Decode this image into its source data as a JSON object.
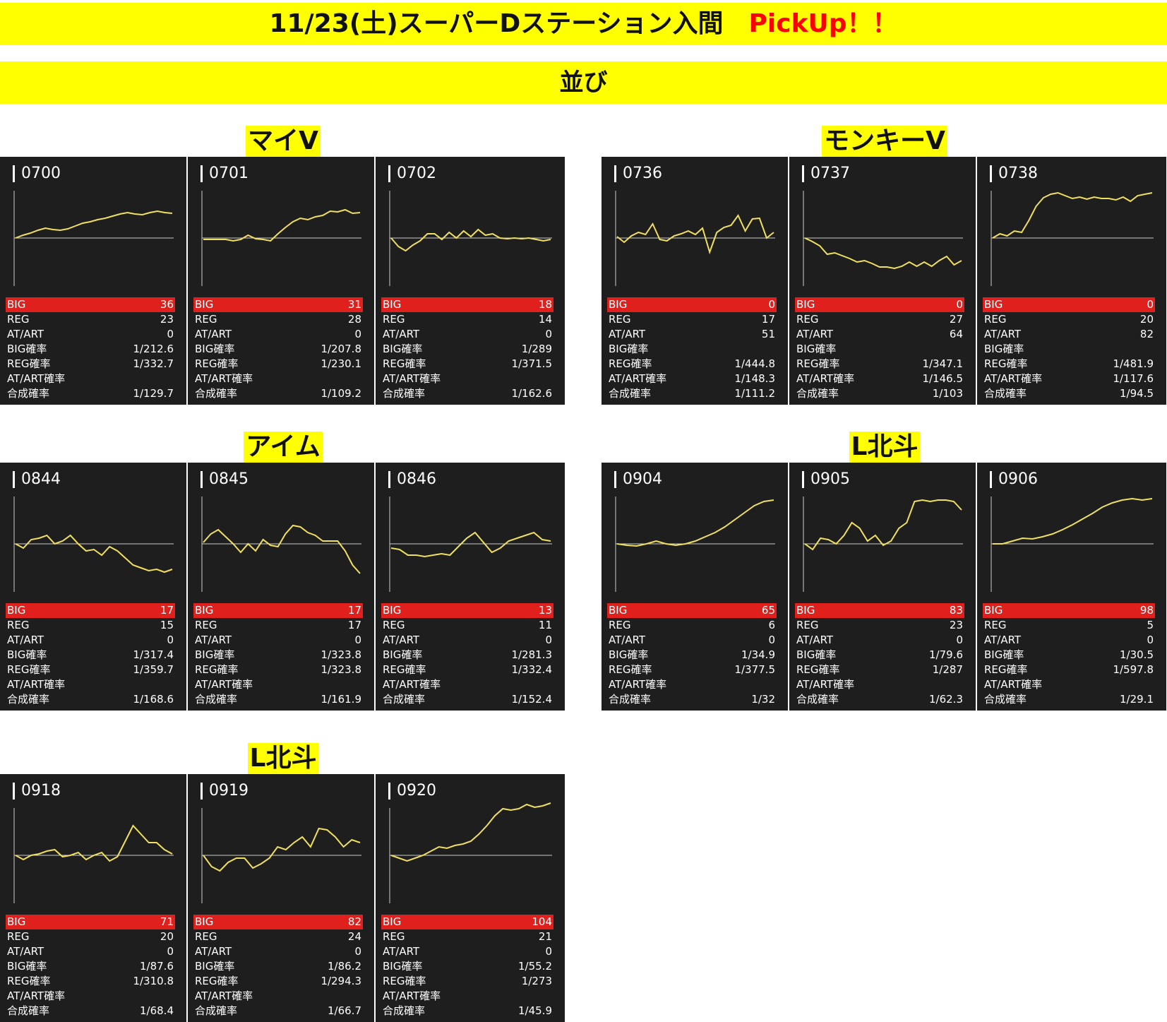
{
  "header": {
    "title": "11/23(土)スーパーDステーション入間",
    "pickup": "PickUp！！"
  },
  "subheader": {
    "label": "並び"
  },
  "stat_labels": {
    "big": "BIG",
    "reg": "REG",
    "at": "AT/ART",
    "big_rate": "BIG確率",
    "reg_rate": "REG確率",
    "at_rate": "AT/ART確率",
    "total_rate": "合成確率"
  },
  "colors": {
    "banner": "#ffff00",
    "pickup": "#ff0000",
    "card_bg": "#1e1e1e",
    "big_row": "#e0201c",
    "line": "#f0e060",
    "axis": "#cccccc"
  },
  "chart_data": [
    {
      "type": "line",
      "group": "マイV",
      "machines": [
        {
          "id": "0700",
          "series": [
            0,
            4,
            7,
            11,
            14,
            12,
            11,
            13,
            17,
            21,
            23,
            26,
            28,
            31,
            34,
            36,
            34,
            33,
            36,
            38,
            36,
            35
          ],
          "big": "36",
          "reg": "23",
          "at": "0",
          "big_rate": "1/212.6",
          "reg_rate": "1/332.7",
          "at_rate": "",
          "total_rate": "1/129.7"
        },
        {
          "id": "0701",
          "series": [
            -2,
            -2,
            -2,
            -2,
            -4,
            -2,
            4,
            -1,
            -2,
            -4,
            6,
            15,
            23,
            28,
            26,
            30,
            32,
            38,
            37,
            40,
            35,
            36
          ],
          "big": "31",
          "reg": "28",
          "at": "0",
          "big_rate": "1/207.8",
          "reg_rate": "1/230.1",
          "at_rate": "",
          "total_rate": "1/109.2"
        },
        {
          "id": "0702",
          "series": [
            0,
            -12,
            -18,
            -10,
            -4,
            6,
            6,
            -2,
            8,
            0,
            10,
            2,
            12,
            4,
            6,
            0,
            -1,
            0,
            -1,
            0,
            -2,
            -4,
            -2
          ],
          "big": "18",
          "reg": "14",
          "at": "0",
          "big_rate": "1/289",
          "reg_rate": "1/371.5",
          "at_rate": "",
          "total_rate": "1/162.6"
        }
      ]
    },
    {
      "type": "line",
      "group": "モンキーV",
      "machines": [
        {
          "id": "0736",
          "series": [
            2,
            -6,
            3,
            8,
            5,
            20,
            -2,
            -4,
            3,
            6,
            10,
            5,
            14,
            -20,
            8,
            15,
            18,
            32,
            10,
            27,
            28,
            0,
            8
          ],
          "big": "0",
          "reg": "17",
          "at": "51",
          "big_rate": "",
          "reg_rate": "1/444.8",
          "at_rate": "1/148.3",
          "total_rate": "1/111.2"
        },
        {
          "id": "0737",
          "series": [
            0,
            -5,
            -11,
            -23,
            -21,
            -25,
            -29,
            -34,
            -32,
            -36,
            -41,
            -41,
            -43,
            -40,
            -34,
            -40,
            -34,
            -40,
            -32,
            -26,
            -38,
            -32
          ],
          "big": "0",
          "reg": "27",
          "at": "64",
          "big_rate": "",
          "reg_rate": "1/347.1",
          "at_rate": "1/146.5",
          "total_rate": "1/103"
        },
        {
          "id": "0738",
          "series": [
            0,
            6,
            3,
            10,
            8,
            25,
            45,
            57,
            62,
            64,
            60,
            56,
            58,
            55,
            58,
            56,
            56,
            54,
            58,
            52,
            60,
            62,
            64
          ],
          "big": "0",
          "reg": "20",
          "at": "82",
          "big_rate": "",
          "reg_rate": "1/481.9",
          "at_rate": "1/117.6",
          "total_rate": "1/94.5"
        }
      ]
    },
    {
      "type": "line",
      "group": "アイム",
      "machines": [
        {
          "id": "0844",
          "series": [
            0,
            -6,
            6,
            8,
            12,
            0,
            4,
            12,
            0,
            -10,
            -8,
            -16,
            -4,
            -10,
            -20,
            -30,
            -34,
            -38,
            -36,
            -40,
            -36
          ],
          "big": "17",
          "reg": "15",
          "at": "0",
          "big_rate": "1/317.4",
          "reg_rate": "1/359.7",
          "at_rate": "",
          "total_rate": "1/168.6"
        },
        {
          "id": "0845",
          "series": [
            2,
            14,
            20,
            10,
            0,
            -12,
            0,
            -10,
            6,
            -2,
            -4,
            14,
            26,
            24,
            16,
            12,
            4,
            4,
            4,
            -10,
            -30,
            -42
          ],
          "big": "17",
          "reg": "17",
          "at": "0",
          "big_rate": "1/323.8",
          "reg_rate": "1/323.8",
          "at_rate": "",
          "total_rate": "1/161.9"
        },
        {
          "id": "0846",
          "series": [
            -6,
            -8,
            -16,
            -16,
            -18,
            -16,
            -14,
            -16,
            -4,
            8,
            16,
            2,
            -12,
            -6,
            4,
            8,
            12,
            16,
            6,
            4
          ],
          "big": "13",
          "reg": "11",
          "at": "0",
          "big_rate": "1/281.3",
          "reg_rate": "1/332.4",
          "at_rate": "",
          "total_rate": "1/152.4"
        }
      ]
    },
    {
      "type": "line",
      "group": "L北斗",
      "machines": [
        {
          "id": "0904",
          "series": [
            0,
            -2,
            -3,
            0,
            4,
            0,
            -2,
            0,
            4,
            10,
            16,
            24,
            34,
            44,
            54,
            60,
            62
          ],
          "big": "65",
          "reg": "6",
          "at": "0",
          "big_rate": "1/34.9",
          "reg_rate": "1/377.5",
          "at_rate": "",
          "total_rate": "1/32"
        },
        {
          "id": "0905",
          "series": [
            0,
            -8,
            8,
            6,
            0,
            12,
            30,
            22,
            4,
            12,
            -2,
            4,
            22,
            30,
            60,
            62,
            60,
            62,
            62,
            60,
            48
          ],
          "big": "83",
          "reg": "23",
          "at": "0",
          "big_rate": "1/79.6",
          "reg_rate": "1/287",
          "at_rate": "",
          "total_rate": "1/62.3"
        },
        {
          "id": "0906",
          "series": [
            0,
            0,
            4,
            8,
            7,
            10,
            14,
            20,
            27,
            35,
            43,
            52,
            58,
            62,
            64,
            62,
            64
          ],
          "big": "98",
          "reg": "5",
          "at": "0",
          "big_rate": "1/30.5",
          "reg_rate": "1/597.8",
          "at_rate": "",
          "total_rate": "1/29.1"
        }
      ]
    },
    {
      "type": "line",
      "group": "L北斗",
      "machines": [
        {
          "id": "0918",
          "series": [
            0,
            -6,
            0,
            2,
            6,
            8,
            -2,
            0,
            4,
            -6,
            0,
            4,
            -8,
            -2,
            20,
            42,
            30,
            18,
            18,
            8,
            2
          ],
          "big": "71",
          "reg": "20",
          "at": "0",
          "big_rate": "1/87.6",
          "reg_rate": "1/310.8",
          "at_rate": "",
          "total_rate": "1/68.4"
        },
        {
          "id": "0919",
          "series": [
            0,
            -16,
            -22,
            -10,
            -4,
            -4,
            -18,
            -12,
            -4,
            12,
            8,
            18,
            26,
            12,
            38,
            36,
            26,
            12,
            22,
            18
          ],
          "big": "82",
          "reg": "24",
          "at": "0",
          "big_rate": "1/86.2",
          "reg_rate": "1/294.3",
          "at_rate": "",
          "total_rate": "1/66.7"
        },
        {
          "id": "0920",
          "series": [
            0,
            -4,
            -8,
            -4,
            0,
            6,
            12,
            10,
            14,
            16,
            20,
            30,
            42,
            56,
            66,
            64,
            66,
            72,
            68,
            70,
            74
          ],
          "big": "104",
          "reg": "21",
          "at": "0",
          "big_rate": "1/55.2",
          "reg_rate": "1/273",
          "at_rate": "",
          "total_rate": "1/45.9"
        }
      ]
    }
  ]
}
